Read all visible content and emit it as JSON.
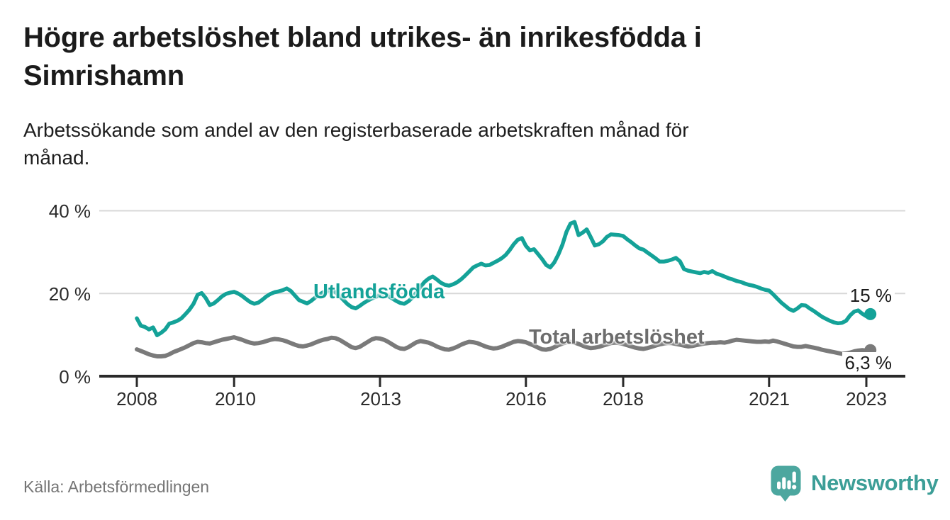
{
  "header": {
    "title": "Högre arbetslöshet bland utrikes- än inrikesfödda i\nSimrishamn",
    "subtitle": "Arbetssökande som andel av den registerbaserade arbetskraften månad för\nmånad."
  },
  "footer": {
    "source": "Källa: Arbetsförmedlingen",
    "brand": "Newsworthy"
  },
  "colors": {
    "utlandsfodda_line": "#14a298",
    "total_line": "#7a7a7a",
    "gridline": "#d8d8d8",
    "axis": "#2a2a2a",
    "logo_icon": "#4ca79f",
    "logo_text": "#3c9e97"
  },
  "chart_data": {
    "type": "line",
    "title": "Högre arbetslöshet bland utrikes- än inrikesfödda i Simrishamn",
    "subtitle": "Arbetssökande som andel av den registerbaserade arbetskraften månad för månad.",
    "unit": "%",
    "x_unit": "month",
    "x_start": "2008-01",
    "x_end": "2023-02",
    "x_tick_labels": [
      "2008",
      "2010",
      "2013",
      "2016",
      "2018",
      "2021",
      "2023"
    ],
    "x_tick_years": [
      2008,
      2010,
      2013,
      2016,
      2018,
      2021,
      2023
    ],
    "y_tick_labels": [
      "40 %",
      "20 %",
      "0 %"
    ],
    "y_ticks": [
      40,
      20,
      0
    ],
    "ylim": [
      0,
      42
    ],
    "grid": "horizontal",
    "legend_position": "inline-labels",
    "series": [
      {
        "name": "Utlandsfödda",
        "color": "#14a298",
        "end_label": "15 %",
        "end_value": 15.0,
        "values": [
          14.0,
          12.2,
          11.9,
          11.3,
          11.8,
          9.9,
          10.5,
          11.3,
          12.7,
          13.0,
          13.4,
          14.0,
          15.0,
          16.1,
          17.5,
          19.7,
          20.1,
          18.9,
          17.2,
          17.6,
          18.4,
          19.3,
          19.9,
          20.2,
          20.4,
          20.0,
          19.4,
          18.6,
          17.9,
          17.5,
          17.8,
          18.5,
          19.3,
          19.9,
          20.3,
          20.5,
          20.8,
          21.2,
          20.6,
          19.5,
          18.4,
          18.0,
          17.6,
          18.2,
          19.0,
          19.7,
          20.3,
          20.6,
          20.9,
          20.3,
          19.4,
          18.4,
          17.4,
          16.7,
          16.4,
          17.0,
          17.7,
          18.3,
          18.8,
          19.2,
          19.5,
          19.8,
          19.4,
          18.8,
          18.2,
          17.7,
          17.5,
          18.1,
          19.0,
          20.3,
          21.6,
          22.8,
          23.6,
          24.1,
          23.4,
          22.6,
          22.1,
          21.9,
          22.2,
          22.7,
          23.4,
          24.3,
          25.3,
          26.3,
          26.8,
          27.2,
          26.8,
          26.9,
          27.4,
          27.9,
          28.5,
          29.3,
          30.5,
          31.9,
          33.0,
          33.4,
          31.5,
          30.4,
          30.7,
          29.5,
          28.3,
          26.9,
          26.3,
          27.5,
          29.4,
          31.8,
          34.9,
          36.9,
          37.3,
          34.1,
          34.7,
          35.5,
          33.6,
          31.6,
          31.9,
          32.6,
          33.7,
          34.3,
          34.2,
          34.1,
          33.9,
          33.1,
          32.4,
          31.6,
          30.9,
          30.6,
          29.9,
          29.2,
          28.5,
          27.7,
          27.7,
          27.9,
          28.2,
          28.6,
          27.8,
          25.9,
          25.5,
          25.3,
          25.1,
          24.9,
          25.2,
          25.0,
          25.4,
          24.8,
          24.5,
          24.1,
          23.7,
          23.4,
          23.0,
          22.8,
          22.4,
          22.1,
          21.9,
          21.6,
          21.2,
          20.9,
          20.7,
          19.8,
          18.8,
          17.8,
          17.0,
          16.2,
          15.8,
          16.4,
          17.2,
          17.1,
          16.4,
          15.8,
          15.1,
          14.4,
          13.9,
          13.4,
          13.0,
          12.8,
          12.9,
          13.4,
          14.7,
          15.6,
          15.9,
          15.1,
          14.5,
          15.0
        ]
      },
      {
        "name": "Total arbetslöshet",
        "color": "#7a7a7a",
        "end_label": "6,3 %",
        "end_value": 6.3,
        "values": [
          6.5,
          6.1,
          5.7,
          5.3,
          5.0,
          4.8,
          4.8,
          4.9,
          5.3,
          5.8,
          6.2,
          6.6,
          7.0,
          7.5,
          8.0,
          8.3,
          8.2,
          8.0,
          7.9,
          8.2,
          8.5,
          8.8,
          9.0,
          9.2,
          9.4,
          9.1,
          8.8,
          8.4,
          8.1,
          7.9,
          8.0,
          8.2,
          8.5,
          8.8,
          9.0,
          8.9,
          8.7,
          8.4,
          8.0,
          7.6,
          7.3,
          7.2,
          7.4,
          7.7,
          8.1,
          8.5,
          8.8,
          9.0,
          9.3,
          9.2,
          8.8,
          8.2,
          7.6,
          7.0,
          6.8,
          7.1,
          7.7,
          8.3,
          8.9,
          9.2,
          9.1,
          8.8,
          8.3,
          7.7,
          7.1,
          6.7,
          6.6,
          7.0,
          7.6,
          8.2,
          8.5,
          8.3,
          8.1,
          7.7,
          7.2,
          6.8,
          6.5,
          6.4,
          6.7,
          7.1,
          7.6,
          8.0,
          8.3,
          8.2,
          8.0,
          7.6,
          7.2,
          6.9,
          6.7,
          6.8,
          7.1,
          7.5,
          7.9,
          8.3,
          8.5,
          8.4,
          8.2,
          7.8,
          7.4,
          6.9,
          6.5,
          6.4,
          6.6,
          7.0,
          7.5,
          7.9,
          8.2,
          8.3,
          8.1,
          7.8,
          7.4,
          7.0,
          6.8,
          6.9,
          7.1,
          7.4,
          7.7,
          8.0,
          8.1,
          8.0,
          7.8,
          7.5,
          7.2,
          6.9,
          6.7,
          6.6,
          6.8,
          7.1,
          7.4,
          7.7,
          7.9,
          8.0,
          8.0,
          7.8,
          7.6,
          7.4,
          7.2,
          7.3,
          7.5,
          7.7,
          7.9,
          8.0,
          8.1,
          8.1,
          8.2,
          8.1,
          8.3,
          8.6,
          8.8,
          8.7,
          8.6,
          8.5,
          8.4,
          8.3,
          8.3,
          8.4,
          8.3,
          8.6,
          8.4,
          8.1,
          7.8,
          7.5,
          7.2,
          7.1,
          7.1,
          7.3,
          7.1,
          6.9,
          6.7,
          6.4,
          6.2,
          6.0,
          5.8,
          5.6,
          5.4,
          5.5,
          5.7,
          6.0,
          6.2,
          6.3,
          6.2,
          6.3
        ]
      }
    ]
  }
}
